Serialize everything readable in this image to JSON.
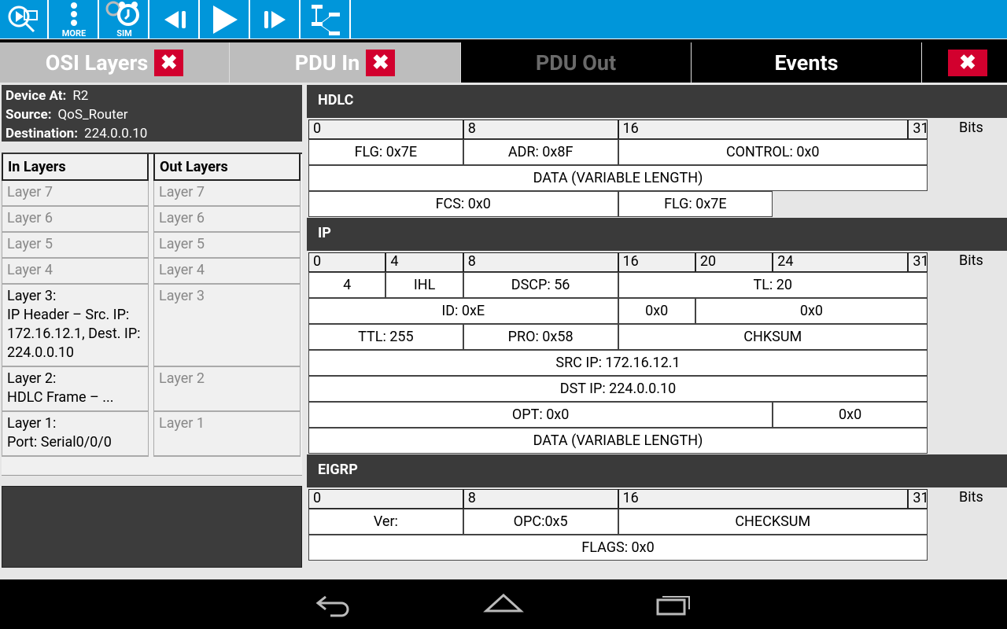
{
  "toolbar": {
    "items": [
      {
        "name": "inspect",
        "label": ""
      },
      {
        "name": "more",
        "label": "MORE"
      },
      {
        "name": "sim",
        "label": "SIM"
      },
      {
        "name": "step-back",
        "label": ""
      },
      {
        "name": "play",
        "label": ""
      },
      {
        "name": "step-forward",
        "label": ""
      },
      {
        "name": "topology",
        "label": ""
      }
    ],
    "color": "#0096da"
  },
  "tabs": [
    {
      "label": "OSI Layers",
      "close": "✖"
    },
    {
      "label": "PDU In",
      "close": "✖"
    },
    {
      "label": "PDU Out"
    },
    {
      "label": "Events"
    },
    {
      "label": "",
      "close": "✖"
    }
  ],
  "info": {
    "device_label": "Device At:",
    "device": "R2",
    "source_label": "Source:",
    "source": "QoS_Router",
    "dest_label": "Destination:",
    "dest": "224.0.0.10"
  },
  "layers": {
    "in_header": "In Layers",
    "out_header": "Out Layers",
    "in": [
      "Layer 7",
      "Layer 6",
      "Layer 5",
      "Layer 4",
      "Layer 3:\nIP Header – Src. IP: 172.16.12.1, Dest. IP: 224.0.0.10",
      "Layer 2:\nHDLC Frame – ...",
      "Layer 1:\nPort: Serial0/0/0"
    ],
    "out": [
      "Layer 7",
      "Layer 6",
      "Layer 5",
      "Layer 4",
      "Layer 3",
      "Layer 2",
      "Layer 1"
    ]
  },
  "pdu": {
    "bits_label": "Bits",
    "sections": [
      {
        "title": "HDLC",
        "bits": [
          [
            0,
            8,
            "0"
          ],
          [
            8,
            16,
            "8"
          ],
          [
            16,
            31,
            "16"
          ],
          [
            31,
            32,
            "31"
          ]
        ],
        "rows": [
          [
            [
              0,
              8,
              "FLG: 0x7E"
            ],
            [
              8,
              16,
              "ADR: 0x8F"
            ],
            [
              16,
              32,
              "CONTROL: 0x0"
            ]
          ],
          [
            [
              0,
              32,
              "DATA (VARIABLE LENGTH)"
            ]
          ],
          [
            [
              0,
              16,
              "FCS: 0x0"
            ],
            [
              16,
              24,
              "FLG: 0x7E"
            ]
          ]
        ]
      },
      {
        "title": "IP",
        "bits": [
          [
            0,
            4,
            "0"
          ],
          [
            4,
            8,
            "4"
          ],
          [
            8,
            16,
            "8"
          ],
          [
            16,
            20,
            "16"
          ],
          [
            20,
            24,
            "20"
          ],
          [
            24,
            31,
            "24"
          ],
          [
            31,
            32,
            "31"
          ]
        ],
        "rows": [
          [
            [
              0,
              4,
              "4"
            ],
            [
              4,
              8,
              "IHL"
            ],
            [
              8,
              16,
              "DSCP: 56"
            ],
            [
              16,
              32,
              "TL: 20"
            ]
          ],
          [
            [
              0,
              16,
              "ID: 0xE"
            ],
            [
              16,
              20,
              "0x0"
            ],
            [
              20,
              32,
              "0x0"
            ]
          ],
          [
            [
              0,
              8,
              "TTL: 255"
            ],
            [
              8,
              16,
              "PRO: 0x58"
            ],
            [
              16,
              32,
              "CHKSUM"
            ]
          ],
          [
            [
              0,
              32,
              "SRC IP: 172.16.12.1"
            ]
          ],
          [
            [
              0,
              32,
              "DST IP: 224.0.0.10"
            ]
          ],
          [
            [
              0,
              24,
              "OPT: 0x0"
            ],
            [
              24,
              32,
              "0x0"
            ]
          ],
          [
            [
              0,
              32,
              "DATA (VARIABLE LENGTH)"
            ]
          ]
        ]
      },
      {
        "title": "EIGRP",
        "bits": [
          [
            0,
            8,
            "0"
          ],
          [
            8,
            16,
            "8"
          ],
          [
            16,
            31,
            "16"
          ],
          [
            31,
            32,
            "31"
          ]
        ],
        "rows": [
          [
            [
              0,
              8,
              "Ver:"
            ],
            [
              8,
              16,
              "OPC:0x5"
            ],
            [
              16,
              32,
              "CHECKSUM"
            ]
          ],
          [
            [
              0,
              32,
              "FLAGS: 0x0"
            ]
          ]
        ]
      }
    ]
  },
  "navbar": {
    "items": [
      "back",
      "home",
      "recents"
    ]
  }
}
